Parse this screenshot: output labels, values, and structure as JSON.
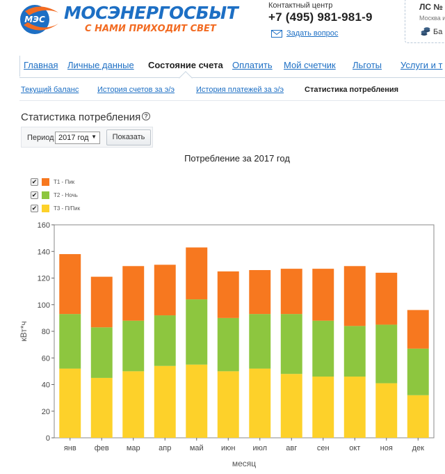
{
  "header": {
    "logo_text": "МЭС",
    "brand_name": "МОСЭНЕРГОСБЫТ",
    "slogan": "С НАМИ ПРИХОДИТ СВЕТ",
    "contact_label": "Контактный центр",
    "phone": "+7 (495) 981-981-9",
    "ask_label": "Задать вопрос",
    "account_label": "ЛС №",
    "account_city": "Москва и",
    "balance_label": "Ба",
    "colors": {
      "brand_blue": "#1d6fc4",
      "brand_orange": "#f26b22"
    }
  },
  "nav": {
    "items": [
      {
        "label": "Главная",
        "active": false
      },
      {
        "label": "Личные данные",
        "active": false
      },
      {
        "label": "Состояние счета",
        "active": true
      },
      {
        "label": "Оплатить",
        "active": false
      },
      {
        "label": "Мой счетчик",
        "active": false
      },
      {
        "label": "Льготы",
        "active": false
      },
      {
        "label": "Услуги и т",
        "active": false
      }
    ]
  },
  "subnav": {
    "items": [
      {
        "label": "Текущий баланс",
        "active": false
      },
      {
        "label": "История счетов за э/э",
        "active": false
      },
      {
        "label": "История платежей за э/э",
        "active": false
      },
      {
        "label": "Статистика потребления",
        "active": true
      }
    ]
  },
  "section": {
    "title": "Статистика потребления",
    "help_icon": "question-circle-icon",
    "period_label": "Период",
    "period_value": "2017 год",
    "show_button": "Показать"
  },
  "chart_data": {
    "type": "bar",
    "stacked": true,
    "title": "Потребление за 2017 год",
    "xlabel": "месяц",
    "ylabel": "кВт*ч",
    "ylim": [
      0,
      160
    ],
    "yticks": [
      0,
      20,
      40,
      60,
      80,
      100,
      120,
      140,
      160
    ],
    "grid": false,
    "legend_position": "top-left",
    "categories": [
      "янв",
      "фев",
      "мар",
      "апр",
      "май",
      "июн",
      "июл",
      "авг",
      "сен",
      "окт",
      "ноя",
      "дек"
    ],
    "series": [
      {
        "name": "Т3 - П/Пик",
        "color": "#fdd12a",
        "values": [
          52,
          45,
          50,
          54,
          55,
          50,
          52,
          48,
          46,
          46,
          41,
          32
        ]
      },
      {
        "name": "Т2 - Ночь",
        "color": "#8dc63f",
        "values": [
          41,
          38,
          38,
          38,
          49,
          40,
          41,
          45,
          42,
          38,
          44,
          35
        ]
      },
      {
        "name": "Т1 - Пик",
        "color": "#f7781f",
        "values": [
          45,
          38,
          41,
          38,
          39,
          35,
          33,
          34,
          39,
          45,
          39,
          29
        ]
      }
    ],
    "legend_order": [
      "Т1 - Пик",
      "Т2 - Ночь",
      "Т3 - П/Пик"
    ]
  }
}
